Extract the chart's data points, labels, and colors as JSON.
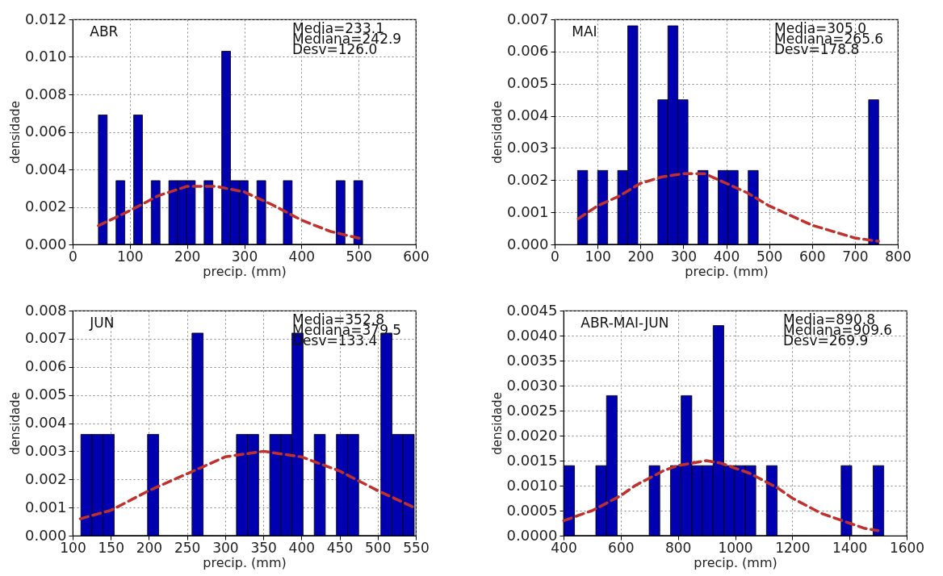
{
  "chart_data": [
    {
      "type": "histogram",
      "xlabel": "precip. (mm)",
      "ylabel": "densidade",
      "annotations": [
        "ABR",
        "Media=233.1",
        "Mediana=242.9",
        "Desv=126.0"
      ],
      "grid": true,
      "xlim": [
        0,
        600
      ],
      "ylim": [
        0,
        0.012
      ],
      "xticks": [
        0,
        100,
        200,
        300,
        400,
        500,
        600
      ],
      "yticks": [
        {
          "value": 0,
          "label": "0.000"
        },
        {
          "value": 0.002,
          "label": "0.002"
        },
        {
          "value": 0.004,
          "label": "0.004"
        },
        {
          "value": 0.006,
          "label": "0.006"
        },
        {
          "value": 0.008,
          "label": "0.008"
        },
        {
          "value": 0.01,
          "label": "0.010"
        },
        {
          "value": 0.012,
          "label": "0.012"
        }
      ],
      "series": [
        {
          "type": "histogram",
          "color": "#0000b0",
          "bins": [
            45,
            60.4,
            75.8,
            91.2,
            106.6,
            122,
            137.4,
            152.8,
            168.2,
            183.6,
            199,
            214.4,
            229.8,
            245.2,
            260.6,
            276,
            291.4,
            306.8,
            322.2,
            337.6,
            353,
            368.4,
            383.8,
            399.2,
            414.6,
            430,
            445.4,
            460.8,
            476.2,
            491.6,
            507
          ],
          "values": [
            0.0069,
            0,
            0.0034,
            0,
            0.0069,
            0,
            0.0034,
            0,
            0.0034,
            0.0034,
            0.0034,
            0,
            0.0034,
            0,
            0.0103,
            0.0034,
            0.0034,
            0,
            0.0034,
            0,
            0,
            0.0034,
            0,
            0,
            0,
            0,
            0,
            0.0034,
            0,
            0.0034
          ]
        },
        {
          "type": "line",
          "color": "#c0302c",
          "line_style": "dashed",
          "x": [
            45,
            100,
            150,
            200,
            250,
            300,
            350,
            400,
            450,
            505
          ],
          "values": [
            0.001,
            0.0018,
            0.0026,
            0.0031,
            0.0031,
            0.0028,
            0.0021,
            0.0013,
            0.0007,
            0.0003
          ]
        }
      ]
    },
    {
      "type": "histogram",
      "xlabel": "precip. (mm)",
      "ylabel": "densidade",
      "annotations": [
        "MAI",
        "Media=305.0",
        "Mediana=265.6",
        "Desv=178.8"
      ],
      "grid": true,
      "xlim": [
        0,
        800
      ],
      "ylim": [
        0,
        0.007
      ],
      "xticks": [
        0,
        100,
        200,
        300,
        400,
        500,
        600,
        700,
        800
      ],
      "yticks": [
        {
          "value": 0,
          "label": "0.000"
        },
        {
          "value": 0.001,
          "label": "0.001"
        },
        {
          "value": 0.002,
          "label": "0.002"
        },
        {
          "value": 0.003,
          "label": "0.003"
        },
        {
          "value": 0.004,
          "label": "0.004"
        },
        {
          "value": 0.005,
          "label": "0.005"
        },
        {
          "value": 0.006,
          "label": "0.006"
        },
        {
          "value": 0.007,
          "label": "0.007"
        }
      ],
      "series": [
        {
          "type": "histogram",
          "color": "#0000b0",
          "bins": [
            53.4,
            76.8,
            100.2,
            123.6,
            147,
            170.4,
            193.8,
            217.2,
            240.6,
            264,
            287.4,
            310.8,
            334.2,
            357.6,
            381,
            404.4,
            427.8,
            451.2,
            474.6,
            498,
            521.4,
            544.8,
            568.2,
            591.6,
            615,
            638.4,
            661.8,
            685.2,
            708.6,
            732,
            755.4
          ],
          "values": [
            0.0023,
            0,
            0.0023,
            0,
            0.0023,
            0.0068,
            0,
            0,
            0.0045,
            0.0068,
            0.0045,
            0,
            0.0023,
            0,
            0.0023,
            0.0023,
            0,
            0.0023,
            0,
            0,
            0,
            0,
            0,
            0,
            0,
            0,
            0,
            0,
            0,
            0.0045
          ]
        },
        {
          "type": "line",
          "color": "#c0302c",
          "line_style": "dashed",
          "x": [
            55,
            100,
            150,
            200,
            250,
            300,
            350,
            400,
            450,
            500,
            550,
            600,
            650,
            700,
            755
          ],
          "values": [
            0.0008,
            0.0012,
            0.0015,
            0.0019,
            0.0021,
            0.0022,
            0.0022,
            0.0019,
            0.0016,
            0.0012,
            0.0009,
            0.0006,
            0.0004,
            0.0002,
            0.0001
          ]
        }
      ]
    },
    {
      "type": "histogram",
      "xlabel": "precip. (mm)",
      "ylabel": "densidade",
      "annotations": [
        "JUN",
        "Media=352.8",
        "Mediana=379.5",
        "Desv=133.4"
      ],
      "grid": true,
      "xlim": [
        100,
        550
      ],
      "ylim": [
        0,
        0.008
      ],
      "xticks": [
        100,
        150,
        200,
        250,
        300,
        350,
        400,
        450,
        500,
        550
      ],
      "yticks": [
        {
          "value": 0,
          "label": "0.000"
        },
        {
          "value": 0.001,
          "label": "0.001"
        },
        {
          "value": 0.002,
          "label": "0.002"
        },
        {
          "value": 0.003,
          "label": "0.003"
        },
        {
          "value": 0.004,
          "label": "0.004"
        },
        {
          "value": 0.005,
          "label": "0.005"
        },
        {
          "value": 0.006,
          "label": "0.006"
        },
        {
          "value": 0.007,
          "label": "0.007"
        },
        {
          "value": 0.008,
          "label": "0.008"
        }
      ],
      "series": [
        {
          "type": "histogram",
          "color": "#0000b0",
          "bins": [
            110.8,
            125.4,
            139.9,
            154.5,
            169.1,
            183.7,
            198.2,
            212.8,
            227.4,
            241.9,
            256.5,
            271.1,
            285.6,
            300.2,
            314.8,
            329.4,
            343.9,
            358.5,
            373.1,
            387.6,
            402.2,
            416.8,
            431.3,
            445.9,
            460.5,
            475.1,
            489.6,
            504.2,
            518.8,
            533.3,
            547.9
          ],
          "values": [
            0.0036,
            0.0036,
            0.0036,
            0,
            0,
            0,
            0.0036,
            0,
            0,
            0,
            0.0072,
            0,
            0,
            0,
            0.0036,
            0.0036,
            0,
            0.0036,
            0.0036,
            0.0072,
            0,
            0.0036,
            0,
            0.0036,
            0.0036,
            0,
            0,
            0.0072,
            0.0036,
            0.0036
          ]
        },
        {
          "type": "line",
          "color": "#c0302c",
          "line_style": "dashed",
          "x": [
            110,
            150,
            200,
            250,
            300,
            350,
            400,
            450,
            500,
            548
          ],
          "values": [
            0.0006,
            0.0009,
            0.0016,
            0.0022,
            0.0028,
            0.003,
            0.0028,
            0.0023,
            0.0016,
            0.001
          ]
        }
      ]
    },
    {
      "type": "histogram",
      "xlabel": "precip. (mm)",
      "ylabel": "densidade",
      "annotations": [
        "ABR-MAI-JUN",
        "Media=890.8",
        "Mediana=909.6",
        "Desv=269.9"
      ],
      "grid": true,
      "xlim": [
        400,
        1600
      ],
      "ylim": [
        0,
        0.0045
      ],
      "xticks": [
        400,
        600,
        800,
        1000,
        1200,
        1400,
        1600
      ],
      "yticks": [
        {
          "value": 0,
          "label": "0.0000"
        },
        {
          "value": 0.0005,
          "label": "0.0005"
        },
        {
          "value": 0.001,
          "label": "0.0010"
        },
        {
          "value": 0.0015,
          "label": "0.0015"
        },
        {
          "value": 0.002,
          "label": "0.0020"
        },
        {
          "value": 0.0025,
          "label": "0.0025"
        },
        {
          "value": 0.003,
          "label": "0.0030"
        },
        {
          "value": 0.0035,
          "label": "0.0035"
        },
        {
          "value": 0.004,
          "label": "0.0040"
        },
        {
          "value": 0.0045,
          "label": "0.0045"
        }
      ],
      "series": [
        {
          "type": "histogram",
          "color": "#0000b0",
          "bins": [
            401,
            438.3,
            475.6,
            512.9,
            550.2,
            587.5,
            624.8,
            662.1,
            699.4,
            736.7,
            774,
            811.3,
            848.6,
            885.9,
            923.2,
            960.5,
            997.8,
            1035.1,
            1072.4,
            1109.7,
            1147,
            1184.3,
            1221.6,
            1258.9,
            1296.2,
            1333.5,
            1370.8,
            1408.1,
            1445.4,
            1482.7,
            1520
          ],
          "values": [
            0.0014,
            0,
            0,
            0.0014,
            0.0028,
            0,
            0,
            0,
            0.0014,
            0,
            0.0014,
            0.0028,
            0.0014,
            0.0014,
            0.0042,
            0.0014,
            0.0014,
            0.0014,
            0,
            0.0014,
            0,
            0,
            0,
            0,
            0,
            0,
            0.0014,
            0,
            0,
            0.0014
          ]
        },
        {
          "type": "line",
          "color": "#c0302c",
          "line_style": "dashed",
          "x": [
            401,
            450,
            500,
            550,
            600,
            650,
            700,
            750,
            800,
            850,
            900,
            950,
            1000,
            1050,
            1100,
            1150,
            1200,
            1250,
            1300,
            1350,
            1400,
            1450,
            1500
          ],
          "values": [
            0.0003,
            0.0004,
            0.0005,
            0.00065,
            0.0008,
            0.001,
            0.00115,
            0.0013,
            0.0014,
            0.00145,
            0.0015,
            0.00145,
            0.00135,
            0.00125,
            0.0011,
            0.00095,
            0.00075,
            0.0006,
            0.00045,
            0.00035,
            0.00025,
            0.00015,
            0.0001
          ]
        }
      ]
    }
  ]
}
